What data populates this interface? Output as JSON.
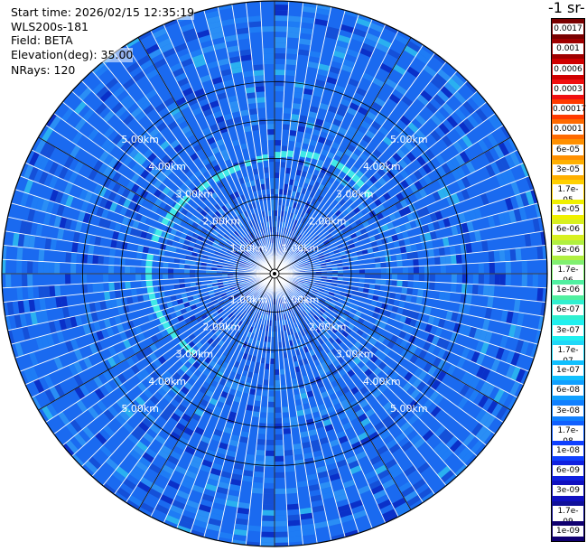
{
  "header": {
    "start_time": "Start time: 2026/02/15 12:35:19",
    "instrument": "WLS200s-181",
    "field": "Field: BETA",
    "elevation": "Elevation(deg): 35.00",
    "nrays": "NRays: 120"
  },
  "colorbar": {
    "title": "-1 sr-",
    "labels": [
      "0.0017",
      "0.001",
      "0.0006",
      "0.0003",
      "0.00017",
      "0.0001",
      "6e-05",
      "3e-05",
      "1.7e-05",
      "1e-05",
      "6e-06",
      "3e-06",
      "1.7e-06",
      "1e-06",
      "6e-07",
      "3e-07",
      "1.7e-07",
      "1e-07",
      "6e-08",
      "3e-08",
      "1.7e-08",
      "1e-08",
      "6e-09",
      "3e-09",
      "1.7e-09",
      "1e-09"
    ],
    "colors": [
      "#7a0000",
      "#a00000",
      "#d00000",
      "#f01010",
      "#ff3a00",
      "#ff6a00",
      "#ff9000",
      "#ffb000",
      "#ffd000",
      "#f0f000",
      "#d8f020",
      "#b0f040",
      "#80f070",
      "#50f0a0",
      "#30f0d0",
      "#20f0f0",
      "#20d8f8",
      "#10c0ff",
      "#10a0ff",
      "#1080ff",
      "#1060ff",
      "#1040ff",
      "#1020e0",
      "#1010c0",
      "#10109a",
      "#100070"
    ]
  },
  "ppi": {
    "range_rings_km": [
      1,
      2,
      3,
      4,
      5
    ],
    "ring_label_suffix": "km",
    "ring_labels": {
      "r1": "1.00km",
      "r2": "2.00km",
      "r3": "3.00km",
      "r4": "4.00km",
      "r5": "5.00km"
    },
    "n_rays": 120,
    "palette": {
      "background": "#1a6af0",
      "clear_air": [
        "#1a6af0",
        "#1e7cf5",
        "#2a8ef5",
        "#1450d8",
        "#0a30c8",
        "#2ab0f0",
        "#30c8f0"
      ],
      "aerosol_arc": "#40e8e8",
      "ray_gap": "#ffffff",
      "grid": "#000000"
    }
  }
}
